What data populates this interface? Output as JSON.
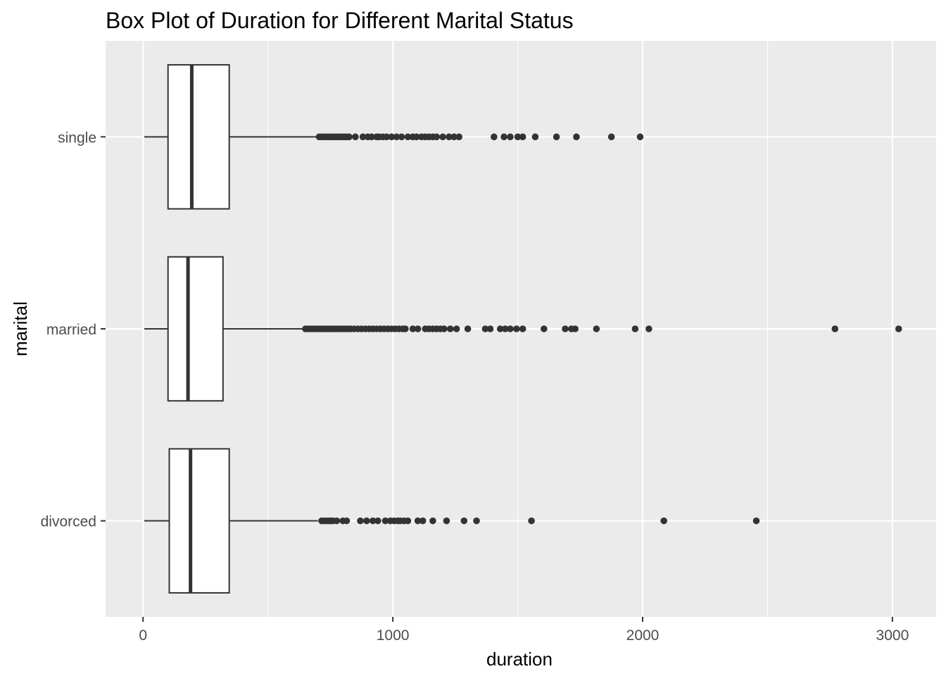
{
  "chart_data": {
    "type": "boxplot",
    "orientation": "horizontal",
    "title": "Box Plot of Duration for Different Marital Status",
    "xlabel": "duration",
    "ylabel": "marital",
    "xlim": [
      -150,
      3175
    ],
    "x_ticks": [
      0,
      1000,
      2000,
      3000
    ],
    "x_tick_labels": [
      "0",
      "1000",
      "2000",
      "3000"
    ],
    "grid": true,
    "colors": {
      "panel_background": "#ebebeb",
      "grid": "#ffffff",
      "box_fill": "#ffffff",
      "box_stroke": "#333333",
      "outlier": "#333333",
      "axis_text": "#4d4d4d"
    },
    "categories": [
      "divorced",
      "married",
      "single"
    ],
    "series": [
      {
        "category": "divorced",
        "whisker_low": 5,
        "q1": 105,
        "median": 190,
        "q3": 345,
        "whisker_high": 700,
        "outliers": [
          715,
          725,
          735,
          745,
          752,
          760,
          775,
          800,
          815,
          870,
          895,
          920,
          940,
          970,
          990,
          1005,
          1020,
          1030,
          1045,
          1060,
          1100,
          1120,
          1160,
          1215,
          1285,
          1335,
          1555,
          2085,
          2455
        ]
      },
      {
        "category": "married",
        "whisker_low": 5,
        "q1": 100,
        "median": 180,
        "q3": 320,
        "whisker_high": 640,
        "outliers": [
          650,
          660,
          670,
          680,
          690,
          700,
          710,
          720,
          730,
          740,
          750,
          760,
          770,
          780,
          790,
          800,
          810,
          820,
          830,
          845,
          860,
          875,
          890,
          905,
          920,
          935,
          950,
          965,
          980,
          995,
          1010,
          1025,
          1040,
          1050,
          1080,
          1100,
          1130,
          1145,
          1160,
          1175,
          1190,
          1205,
          1230,
          1255,
          1300,
          1370,
          1390,
          1430,
          1450,
          1470,
          1495,
          1520,
          1605,
          1690,
          1715,
          1730,
          1815,
          1970,
          2025,
          2770,
          3025
        ]
      },
      {
        "category": "single",
        "whisker_low": 5,
        "q1": 100,
        "median": 195,
        "q3": 345,
        "whisker_high": 700,
        "outliers": [
          705,
          715,
          725,
          735,
          745,
          755,
          765,
          775,
          785,
          795,
          805,
          815,
          825,
          850,
          880,
          900,
          915,
          935,
          945,
          960,
          975,
          995,
          1015,
          1035,
          1060,
          1080,
          1095,
          1115,
          1130,
          1145,
          1160,
          1175,
          1200,
          1225,
          1245,
          1265,
          1405,
          1445,
          1470,
          1500,
          1520,
          1570,
          1655,
          1735,
          1875,
          1990
        ]
      }
    ]
  }
}
